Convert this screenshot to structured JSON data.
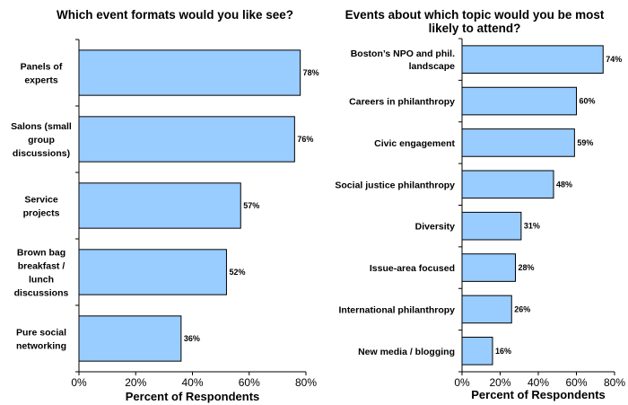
{
  "colors": {
    "bar_fill": "#99CCFF",
    "bar_stroke": "#000000",
    "axis": "#000000"
  },
  "chart_data": [
    {
      "type": "bar",
      "orientation": "horizontal",
      "title": "Which event formats would you like see?",
      "xlabel": "Percent of Respondents",
      "ylabel": "",
      "xlim": [
        0,
        80
      ],
      "xticks": [
        "0%",
        "20%",
        "40%",
        "60%",
        "80%"
      ],
      "grid": false,
      "categories": [
        "Panels of experts",
        "Salons (small group discussions)",
        "Service projects",
        "Brown bag breakfast / lunch discussions",
        "Pure social networking"
      ],
      "category_lines": [
        [
          "Panels of",
          "experts"
        ],
        [
          "Salons (small",
          "group",
          "discussions)"
        ],
        [
          "Service",
          "projects"
        ],
        [
          "Brown bag",
          "breakfast /",
          "lunch",
          "discussions"
        ],
        [
          "Pure social",
          "networking"
        ]
      ],
      "values": [
        78,
        76,
        57,
        52,
        36
      ],
      "value_labels": [
        "78%",
        "76%",
        "57%",
        "52%",
        "36%"
      ]
    },
    {
      "type": "bar",
      "orientation": "horizontal",
      "title": "Events about which topic would you be most likely to attend?",
      "title_lines": [
        "Events about which topic would you be most",
        "likely to attend?"
      ],
      "xlabel": "Percent of Respondents",
      "ylabel": "",
      "xlim": [
        0,
        80
      ],
      "xticks": [
        "0%",
        "20%",
        "40%",
        "60%",
        "80%"
      ],
      "grid": false,
      "categories": [
        "Boston’s NPO and phil. landscape",
        "Careers in philanthropy",
        "Civic engagement",
        "Social justice philanthropy",
        "Diversity",
        "Issue-area focused",
        "International philanthropy",
        "New media / blogging"
      ],
      "category_lines": [
        [
          "Boston’s NPO and phil.",
          "landscape"
        ],
        [
          "Careers in philanthropy"
        ],
        [
          "Civic engagement"
        ],
        [
          "Social justice philanthropy"
        ],
        [
          "Diversity"
        ],
        [
          "Issue-area focused"
        ],
        [
          "International philanthropy"
        ],
        [
          "New media / blogging"
        ]
      ],
      "values": [
        74,
        60,
        59,
        48,
        31,
        28,
        26,
        16
      ],
      "value_labels": [
        "74%",
        "60%",
        "59%",
        "48%",
        "31%",
        "28%",
        "26%",
        "16%"
      ]
    }
  ]
}
